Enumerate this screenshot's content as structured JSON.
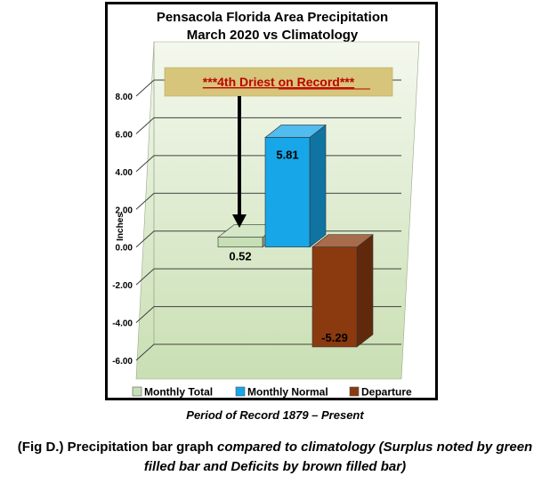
{
  "chart_data": {
    "type": "bar",
    "title_lines": [
      "Pensacola Florida Area Precipitation",
      "March 2020 vs Climatology"
    ],
    "ylabel": "Inches",
    "xlabel": "",
    "ylim": [
      -6,
      8
    ],
    "yticks": [
      "8.00",
      "6.00",
      "4.00",
      "2.00",
      "0.00",
      "-2.00",
      "-4.00",
      "-6.00"
    ],
    "grid": true,
    "legend_position": "bottom",
    "series": [
      {
        "name": "Monthly Total",
        "value": 0.52,
        "label": "0.52",
        "color": "#c6dfb4"
      },
      {
        "name": "Monthly Normal",
        "value": 5.81,
        "label": "5.81",
        "color": "#17a6e8"
      },
      {
        "name": "Departure",
        "value": -5.29,
        "label": "-5.29",
        "color": "#8b3a0f"
      }
    ],
    "annotation": "***4th Driest on Record***"
  },
  "period_text": "Period of Record 1879 – Present",
  "caption": {
    "part1": "(Fig D.) Precipitation bar graph ",
    "part2": "compared to climatology (Surplus noted by green filled bar and Deficits by brown filled bar)"
  }
}
